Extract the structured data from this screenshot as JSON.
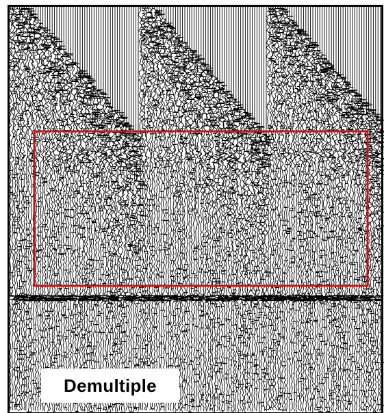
{
  "label": "Demultiple"
}
